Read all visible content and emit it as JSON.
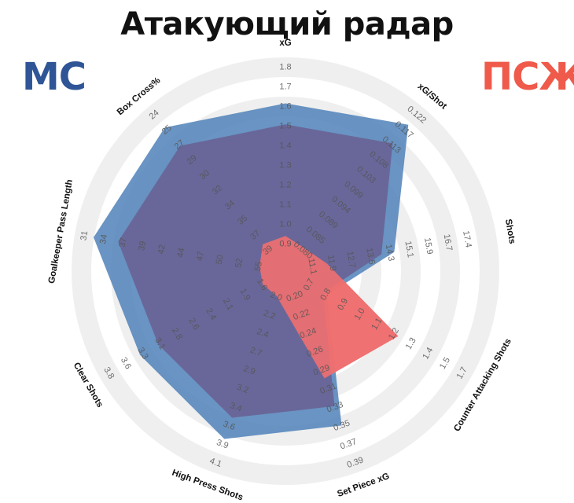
{
  "title": "Атакующий радар",
  "teams": [
    {
      "name": "МС",
      "color": "#2f5597",
      "fill": "#4f81b9"
    },
    {
      "name": "ПСЖ",
      "color": "#ef5a4a",
      "fill": "#ee7070"
    }
  ],
  "chart_data": {
    "type": "radar",
    "title": "Атакующий радар",
    "axes": [
      {
        "label": "xG",
        "ticks": [
          "0.9",
          "1.0",
          "1.1",
          "1.2",
          "1.3",
          "1.4",
          "1.5",
          "1.6",
          "1.7",
          "1.8"
        ]
      },
      {
        "label": "xG/Shot",
        "ticks": [
          "0.080",
          "0.085",
          "0.089",
          "0.094",
          "0.099",
          "0.103",
          "0.108",
          "0.113",
          "0.117",
          "0.122"
        ]
      },
      {
        "label": "Shots",
        "ticks": [
          "11.1",
          "11.9",
          "12.7",
          "13.5",
          "14.3",
          "15.1",
          "15.9",
          "16.7",
          "17.4"
        ]
      },
      {
        "label": "Counter Attacking Shots",
        "ticks": [
          "0.7",
          "0.8",
          "0.9",
          "1.0",
          "1.1",
          "1.2",
          "1.3",
          "1.4",
          "1.5",
          "1.7"
        ]
      },
      {
        "label": "Set Piece xG",
        "ticks": [
          "0.20",
          "0.22",
          "0.24",
          "0.26",
          "0.29",
          "0.31",
          "0.33",
          "0.35",
          "0.37",
          "0.39"
        ]
      },
      {
        "label": "High Press Shots",
        "ticks": [
          "2.0",
          "2.2",
          "2.4",
          "2.7",
          "2.9",
          "3.2",
          "3.4",
          "3.6",
          "3.9",
          "4.1"
        ]
      },
      {
        "label": "Clear Shots",
        "ticks": [
          "1.6",
          "1.9",
          "2.1",
          "2.4",
          "2.6",
          "2.8",
          "3.1",
          "3.3",
          "3.6",
          "3.8"
        ]
      },
      {
        "label": "Goalkeeper Pass Length",
        "ticks": [
          "55",
          "52",
          "50",
          "47",
          "44",
          "42",
          "39",
          "37",
          "34",
          "31"
        ]
      },
      {
        "label": "Box Cross%",
        "ticks": [
          "39",
          "37",
          "35",
          "34",
          "32",
          "30",
          "29",
          "27",
          "25",
          "24"
        ]
      }
    ],
    "series": [
      {
        "name": "МС",
        "values": [
          0.84,
          0.97,
          0.52,
          0.17,
          0.82,
          0.9,
          0.84,
          0.99,
          0.95
        ]
      },
      {
        "name": "ПСЖ",
        "values": [
          0.1,
          0.07,
          0.14,
          0.63,
          0.54,
          0.05,
          0.05,
          0.05,
          0.1
        ]
      }
    ],
    "legend": "top-left / top-right"
  }
}
